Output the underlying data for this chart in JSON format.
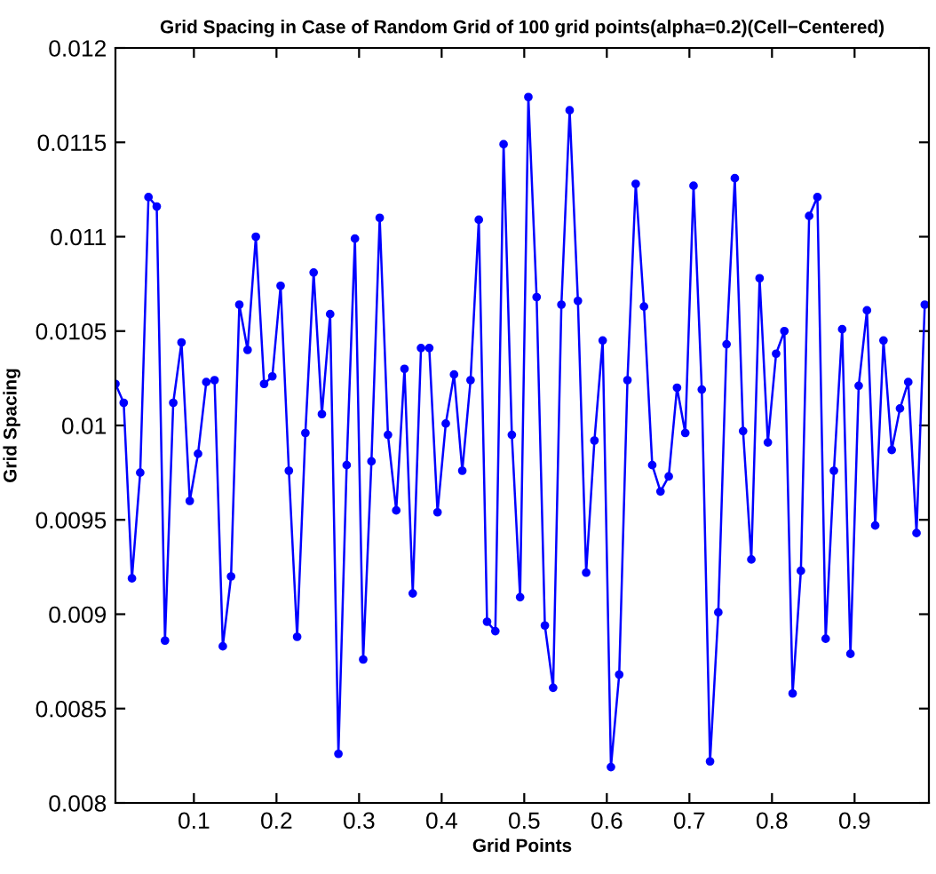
{
  "chart_data": {
    "type": "line",
    "title": "Grid Spacing in Case of Random Grid of 100 grid points(alpha=0.2)(Cell−Centered)",
    "xlabel": "Grid Points",
    "ylabel": "Grid Spacing",
    "x": [
      0.005,
      0.015,
      0.025,
      0.035,
      0.045,
      0.055,
      0.065,
      0.075,
      0.085,
      0.095,
      0.105,
      0.115,
      0.125,
      0.135,
      0.145,
      0.155,
      0.165,
      0.175,
      0.185,
      0.195,
      0.205,
      0.215,
      0.225,
      0.235,
      0.245,
      0.255,
      0.265,
      0.275,
      0.285,
      0.295,
      0.305,
      0.315,
      0.325,
      0.335,
      0.345,
      0.355,
      0.365,
      0.375,
      0.385,
      0.395,
      0.405,
      0.415,
      0.425,
      0.435,
      0.445,
      0.455,
      0.465,
      0.475,
      0.485,
      0.495,
      0.505,
      0.515,
      0.525,
      0.535,
      0.545,
      0.555,
      0.565,
      0.575,
      0.585,
      0.595,
      0.605,
      0.615,
      0.625,
      0.635,
      0.645,
      0.655,
      0.665,
      0.675,
      0.685,
      0.695,
      0.705,
      0.715,
      0.725,
      0.735,
      0.745,
      0.755,
      0.765,
      0.775,
      0.785,
      0.795,
      0.805,
      0.815,
      0.825,
      0.835,
      0.845,
      0.855,
      0.865,
      0.875,
      0.885,
      0.895,
      0.905,
      0.915,
      0.925,
      0.935,
      0.945,
      0.955,
      0.965,
      0.975,
      0.985
    ],
    "series": [
      {
        "color": "#0000ff",
        "values": [
          0.01022,
          0.01012,
          0.00919,
          0.00975,
          0.01121,
          0.01116,
          0.00886,
          0.01012,
          0.01044,
          0.0096,
          0.00985,
          0.01023,
          0.01024,
          0.00883,
          0.0092,
          0.01064,
          0.0104,
          0.011,
          0.01022,
          0.01026,
          0.01074,
          0.00976,
          0.00888,
          0.00996,
          0.01081,
          0.01006,
          0.01059,
          0.00826,
          0.00979,
          0.01099,
          0.00876,
          0.00981,
          0.0111,
          0.00995,
          0.00955,
          0.0103,
          0.00911,
          0.01041,
          0.01041,
          0.00954,
          0.01001,
          0.01027,
          0.00976,
          0.01024,
          0.01109,
          0.00896,
          0.00891,
          0.01149,
          0.00995,
          0.00909,
          0.01174,
          0.01068,
          0.00894,
          0.00861,
          0.01064,
          0.01167,
          0.01066,
          0.00922,
          0.00992,
          0.01045,
          0.00819,
          0.00868,
          0.01024,
          0.01128,
          0.01063,
          0.00979,
          0.00965,
          0.00973,
          0.0102,
          0.00996,
          0.01127,
          0.01019,
          0.00822,
          0.00901,
          0.01043,
          0.01131,
          0.00997,
          0.00929,
          0.01078,
          0.00991,
          0.01038,
          0.0105,
          0.00858,
          0.00923,
          0.01111,
          0.01121,
          0.00887,
          0.00976,
          0.01051,
          0.00879,
          0.01021,
          0.01061,
          0.00947,
          0.01045,
          0.00987,
          0.01009,
          0.01023,
          0.00943,
          0.01064
        ]
      }
    ],
    "xlim": [
      0.005,
      0.99
    ],
    "xticks": [
      0.1,
      0.2,
      0.3,
      0.4,
      0.5,
      0.6,
      0.7,
      0.8,
      0.9
    ],
    "ylim": [
      0.008,
      0.012
    ],
    "yticks": [
      0.008,
      0.0085,
      0.009,
      0.0095,
      0.01,
      0.0105,
      0.011,
      0.0115,
      0.012
    ],
    "grid": false,
    "marker": "circle",
    "line_style": "solid"
  }
}
